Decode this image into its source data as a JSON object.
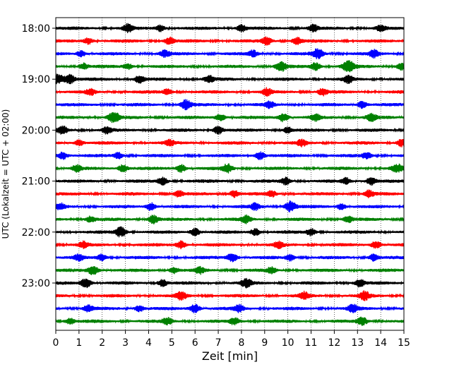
{
  "chart_data": {
    "type": "line",
    "title": "",
    "xlabel": "Zeit  [min]",
    "ylabel": "UTC (Lokalzeit = UTC + 02:00)",
    "xlim": [
      0,
      15
    ],
    "x_ticks": [
      0,
      1,
      2,
      3,
      4,
      5,
      6,
      7,
      8,
      9,
      10,
      11,
      12,
      13,
      14,
      15
    ],
    "grid": "vertical dotted",
    "rows_per_hour": 4,
    "minutes_per_row": 15,
    "hour_labels": [
      "18:00",
      "19:00",
      "20:00",
      "21:00",
      "22:00",
      "23:00"
    ],
    "color_cycle": [
      "#000000",
      "#ff0000",
      "#0000ff",
      "#008000"
    ],
    "trace_count": 24,
    "traces": [
      {
        "start": "18:00",
        "color": "#000000",
        "events": [
          {
            "x": 3.1,
            "amp": 1.0
          },
          {
            "x": 4.5,
            "amp": 0.8
          },
          {
            "x": 8.0,
            "amp": 0.9
          },
          {
            "x": 11.1,
            "amp": 0.9
          },
          {
            "x": 14.0,
            "amp": 0.7
          }
        ]
      },
      {
        "start": "18:15",
        "color": "#ff0000",
        "events": [
          {
            "x": 1.4,
            "amp": 0.8
          },
          {
            "x": 4.9,
            "amp": 0.9
          },
          {
            "x": 9.1,
            "amp": 1.0
          },
          {
            "x": 10.4,
            "amp": 0.9
          }
        ]
      },
      {
        "start": "18:30",
        "color": "#0000ff",
        "events": [
          {
            "x": 1.1,
            "amp": 0.8
          },
          {
            "x": 4.7,
            "amp": 0.9
          },
          {
            "x": 8.5,
            "amp": 0.8
          },
          {
            "x": 11.3,
            "amp": 1.3
          },
          {
            "x": 13.7,
            "amp": 0.9
          }
        ]
      },
      {
        "start": "18:45",
        "color": "#008000",
        "events": [
          {
            "x": 1.2,
            "amp": 0.8
          },
          {
            "x": 3.1,
            "amp": 0.8
          },
          {
            "x": 9.7,
            "amp": 1.3
          },
          {
            "x": 11.2,
            "amp": 1.0
          },
          {
            "x": 12.6,
            "amp": 1.5
          },
          {
            "x": 14.9,
            "amp": 1.0
          }
        ]
      },
      {
        "start": "19:00",
        "color": "#000000",
        "events": [
          {
            "x": 0.1,
            "amp": 1.3
          },
          {
            "x": 0.6,
            "amp": 1.2
          },
          {
            "x": 3.6,
            "amp": 1.0
          },
          {
            "x": 6.6,
            "amp": 0.9
          },
          {
            "x": 12.6,
            "amp": 0.9
          }
        ]
      },
      {
        "start": "19:15",
        "color": "#ff0000",
        "events": [
          {
            "x": 1.5,
            "amp": 0.8
          },
          {
            "x": 4.8,
            "amp": 0.8
          },
          {
            "x": 9.1,
            "amp": 0.9
          },
          {
            "x": 11.5,
            "amp": 0.9
          }
        ]
      },
      {
        "start": "19:30",
        "color": "#0000ff",
        "events": [
          {
            "x": 5.6,
            "amp": 1.2
          },
          {
            "x": 9.2,
            "amp": 0.8
          },
          {
            "x": 13.2,
            "amp": 0.9
          }
        ]
      },
      {
        "start": "19:45",
        "color": "#008000",
        "events": [
          {
            "x": 2.5,
            "amp": 1.4
          },
          {
            "x": 7.1,
            "amp": 1.0
          },
          {
            "x": 9.8,
            "amp": 1.1
          },
          {
            "x": 11.2,
            "amp": 0.8
          },
          {
            "x": 13.6,
            "amp": 1.0
          }
        ]
      },
      {
        "start": "20:00",
        "color": "#000000",
        "events": [
          {
            "x": 0.3,
            "amp": 1.0
          },
          {
            "x": 2.2,
            "amp": 0.9
          },
          {
            "x": 7.0,
            "amp": 1.0
          },
          {
            "x": 10.0,
            "amp": 0.8
          }
        ]
      },
      {
        "start": "20:15",
        "color": "#ff0000",
        "events": [
          {
            "x": 1.0,
            "amp": 0.8
          },
          {
            "x": 4.9,
            "amp": 0.8
          },
          {
            "x": 10.6,
            "amp": 0.8
          },
          {
            "x": 14.9,
            "amp": 1.0
          }
        ]
      },
      {
        "start": "20:30",
        "color": "#0000ff",
        "events": [
          {
            "x": 0.3,
            "amp": 1.0
          },
          {
            "x": 2.7,
            "amp": 0.8
          },
          {
            "x": 8.8,
            "amp": 1.0
          },
          {
            "x": 13.4,
            "amp": 0.8
          }
        ]
      },
      {
        "start": "20:45",
        "color": "#008000",
        "events": [
          {
            "x": 0.9,
            "amp": 0.8
          },
          {
            "x": 2.9,
            "amp": 1.0
          },
          {
            "x": 5.4,
            "amp": 1.0
          },
          {
            "x": 7.4,
            "amp": 1.1
          },
          {
            "x": 14.7,
            "amp": 1.1
          }
        ]
      },
      {
        "start": "21:00",
        "color": "#000000",
        "events": [
          {
            "x": 4.6,
            "amp": 1.0
          },
          {
            "x": 9.9,
            "amp": 0.9
          },
          {
            "x": 12.5,
            "amp": 0.8
          },
          {
            "x": 13.6,
            "amp": 1.0
          }
        ]
      },
      {
        "start": "21:15",
        "color": "#ff0000",
        "events": [
          {
            "x": 5.3,
            "amp": 0.8
          },
          {
            "x": 7.7,
            "amp": 0.9
          },
          {
            "x": 9.3,
            "amp": 0.8
          },
          {
            "x": 13.5,
            "amp": 0.9
          }
        ]
      },
      {
        "start": "21:30",
        "color": "#0000ff",
        "events": [
          {
            "x": 0.2,
            "amp": 0.8
          },
          {
            "x": 4.1,
            "amp": 1.0
          },
          {
            "x": 8.6,
            "amp": 0.8
          },
          {
            "x": 10.1,
            "amp": 1.4
          },
          {
            "x": 12.3,
            "amp": 0.8
          }
        ]
      },
      {
        "start": "21:45",
        "color": "#008000",
        "events": [
          {
            "x": 1.5,
            "amp": 0.8
          },
          {
            "x": 4.2,
            "amp": 1.1
          },
          {
            "x": 8.2,
            "amp": 1.0
          },
          {
            "x": 12.6,
            "amp": 0.8
          }
        ]
      },
      {
        "start": "22:00",
        "color": "#000000",
        "events": [
          {
            "x": 2.8,
            "amp": 1.3
          },
          {
            "x": 6.0,
            "amp": 1.0
          },
          {
            "x": 8.6,
            "amp": 0.9
          },
          {
            "x": 11.0,
            "amp": 0.9
          }
        ]
      },
      {
        "start": "22:15",
        "color": "#ff0000",
        "events": [
          {
            "x": 1.2,
            "amp": 0.8
          },
          {
            "x": 5.4,
            "amp": 1.0
          },
          {
            "x": 9.6,
            "amp": 0.8
          },
          {
            "x": 13.8,
            "amp": 1.0
          }
        ]
      },
      {
        "start": "22:30",
        "color": "#0000ff",
        "events": [
          {
            "x": 1.0,
            "amp": 0.8
          },
          {
            "x": 2.0,
            "amp": 0.9
          },
          {
            "x": 7.6,
            "amp": 1.2
          },
          {
            "x": 10.1,
            "amp": 0.8
          },
          {
            "x": 13.7,
            "amp": 0.9
          }
        ]
      },
      {
        "start": "22:45",
        "color": "#008000",
        "events": [
          {
            "x": 1.6,
            "amp": 1.2
          },
          {
            "x": 5.1,
            "amp": 0.8
          },
          {
            "x": 6.2,
            "amp": 0.8
          },
          {
            "x": 9.3,
            "amp": 0.8
          }
        ]
      },
      {
        "start": "23:00",
        "color": "#000000",
        "events": [
          {
            "x": 1.3,
            "amp": 1.2
          },
          {
            "x": 4.6,
            "amp": 0.9
          },
          {
            "x": 8.2,
            "amp": 1.1
          },
          {
            "x": 13.1,
            "amp": 1.0
          }
        ]
      },
      {
        "start": "23:15",
        "color": "#ff0000",
        "events": [
          {
            "x": 5.4,
            "amp": 1.0
          },
          {
            "x": 10.7,
            "amp": 0.9
          },
          {
            "x": 13.3,
            "amp": 1.1
          }
        ]
      },
      {
        "start": "23:30",
        "color": "#0000ff",
        "events": [
          {
            "x": 1.4,
            "amp": 0.9
          },
          {
            "x": 3.6,
            "amp": 0.8
          },
          {
            "x": 6.0,
            "amp": 1.1
          },
          {
            "x": 7.9,
            "amp": 0.9
          },
          {
            "x": 12.8,
            "amp": 1.0
          }
        ]
      },
      {
        "start": "23:45",
        "color": "#008000",
        "events": [
          {
            "x": 0.6,
            "amp": 0.8
          },
          {
            "x": 4.8,
            "amp": 0.9
          },
          {
            "x": 7.7,
            "amp": 0.9
          },
          {
            "x": 13.2,
            "amp": 1.0
          }
        ]
      }
    ]
  }
}
